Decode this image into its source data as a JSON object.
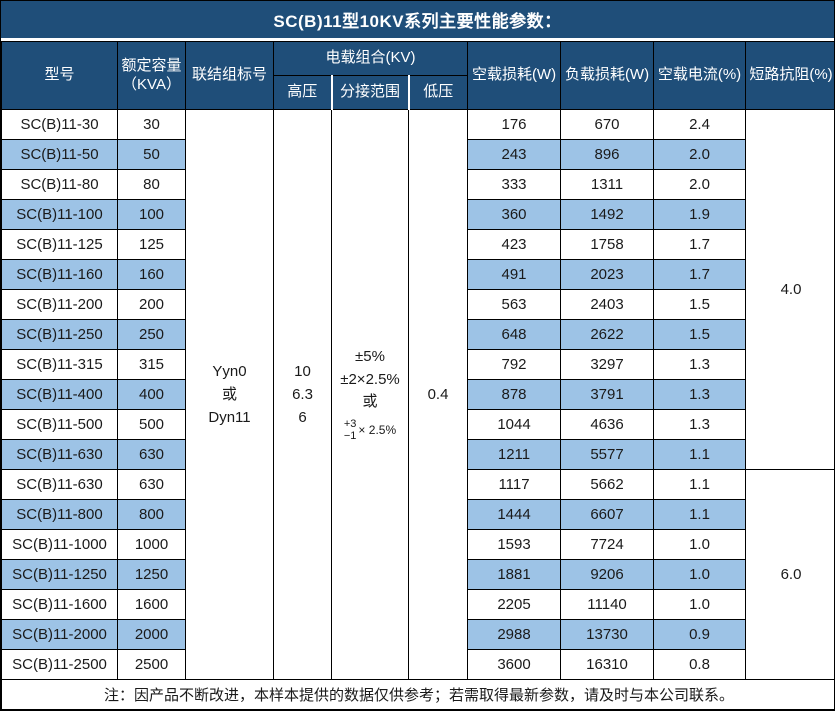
{
  "title": "SC(B)11型10KV系列主要性能参数：",
  "colors": {
    "header_bg": "#1F4E79",
    "row_alt": "#9DC3E6",
    "grid_line": "#000000",
    "header_text": "#FFFFFF"
  },
  "table": {
    "headers": {
      "model": "型号",
      "capacity_line1": "额定容量",
      "capacity_line2": "（KVA）",
      "connection": "联结组标号",
      "voltage_group": "电载组合(KV)",
      "high_voltage": "高压",
      "tap_range": "分接范围",
      "low_voltage": "低压",
      "no_load_loss": "空载损耗(W)",
      "load_loss": "负载损耗(W)",
      "no_load_current": "空载电流(%)",
      "impedance": "短路抗阻(%)"
    },
    "merged": {
      "connection_lines": [
        "Yyn0",
        "或",
        "Dyn11"
      ],
      "high_voltage_lines": [
        "10",
        "6.3",
        "6"
      ],
      "tap_range_lines": [
        "±5%",
        "±2×2.5%",
        "或"
      ],
      "tap_range_frac": {
        "top": "+3",
        "bottom": "−1",
        "suffix": "× 2.5%"
      },
      "low_voltage": "0.4",
      "impedance_groups": [
        {
          "value": "4.0",
          "rows": 12
        },
        {
          "value": "6.0",
          "rows": 7
        }
      ]
    },
    "rows": [
      {
        "model": "SC(B)11-30",
        "capacity": "30",
        "no_load_loss": "176",
        "load_loss": "670",
        "no_load_current": "2.4"
      },
      {
        "model": "SC(B)11-50",
        "capacity": "50",
        "no_load_loss": "243",
        "load_loss": "896",
        "no_load_current": "2.0"
      },
      {
        "model": "SC(B)11-80",
        "capacity": "80",
        "no_load_loss": "333",
        "load_loss": "1311",
        "no_load_current": "2.0"
      },
      {
        "model": "SC(B)11-100",
        "capacity": "100",
        "no_load_loss": "360",
        "load_loss": "1492",
        "no_load_current": "1.9"
      },
      {
        "model": "SC(B)11-125",
        "capacity": "125",
        "no_load_loss": "423",
        "load_loss": "1758",
        "no_load_current": "1.7"
      },
      {
        "model": "SC(B)11-160",
        "capacity": "160",
        "no_load_loss": "491",
        "load_loss": "2023",
        "no_load_current": "1.7"
      },
      {
        "model": "SC(B)11-200",
        "capacity": "200",
        "no_load_loss": "563",
        "load_loss": "2403",
        "no_load_current": "1.5"
      },
      {
        "model": "SC(B)11-250",
        "capacity": "250",
        "no_load_loss": "648",
        "load_loss": "2622",
        "no_load_current": "1.5"
      },
      {
        "model": "SC(B)11-315",
        "capacity": "315",
        "no_load_loss": "792",
        "load_loss": "3297",
        "no_load_current": "1.3"
      },
      {
        "model": "SC(B)11-400",
        "capacity": "400",
        "no_load_loss": "878",
        "load_loss": "3791",
        "no_load_current": "1.3"
      },
      {
        "model": "SC(B)11-500",
        "capacity": "500",
        "no_load_loss": "1044",
        "load_loss": "4636",
        "no_load_current": "1.3"
      },
      {
        "model": "SC(B)11-630",
        "capacity": "630",
        "no_load_loss": "1211",
        "load_loss": "5577",
        "no_load_current": "1.1"
      },
      {
        "model": "SC(B)11-630",
        "capacity": "630",
        "no_load_loss": "1117",
        "load_loss": "5662",
        "no_load_current": "1.1"
      },
      {
        "model": "SC(B)11-800",
        "capacity": "800",
        "no_load_loss": "1444",
        "load_loss": "6607",
        "no_load_current": "1.1"
      },
      {
        "model": "SC(B)11-1000",
        "capacity": "1000",
        "no_load_loss": "1593",
        "load_loss": "7724",
        "no_load_current": "1.0"
      },
      {
        "model": "SC(B)11-1250",
        "capacity": "1250",
        "no_load_loss": "1881",
        "load_loss": "9206",
        "no_load_current": "1.0"
      },
      {
        "model": "SC(B)11-1600",
        "capacity": "1600",
        "no_load_loss": "2205",
        "load_loss": "11140",
        "no_load_current": "1.0"
      },
      {
        "model": "SC(B)11-2000",
        "capacity": "2000",
        "no_load_loss": "2988",
        "load_loss": "13730",
        "no_load_current": "0.9"
      },
      {
        "model": "SC(B)11-2500",
        "capacity": "2500",
        "no_load_loss": "3600",
        "load_loss": "16310",
        "no_load_current": "0.8"
      }
    ]
  },
  "footer_note": "注：因产品不断改进，本样本提供的数据仅供参考；若需取得最新参数，请及时与本公司联系。"
}
